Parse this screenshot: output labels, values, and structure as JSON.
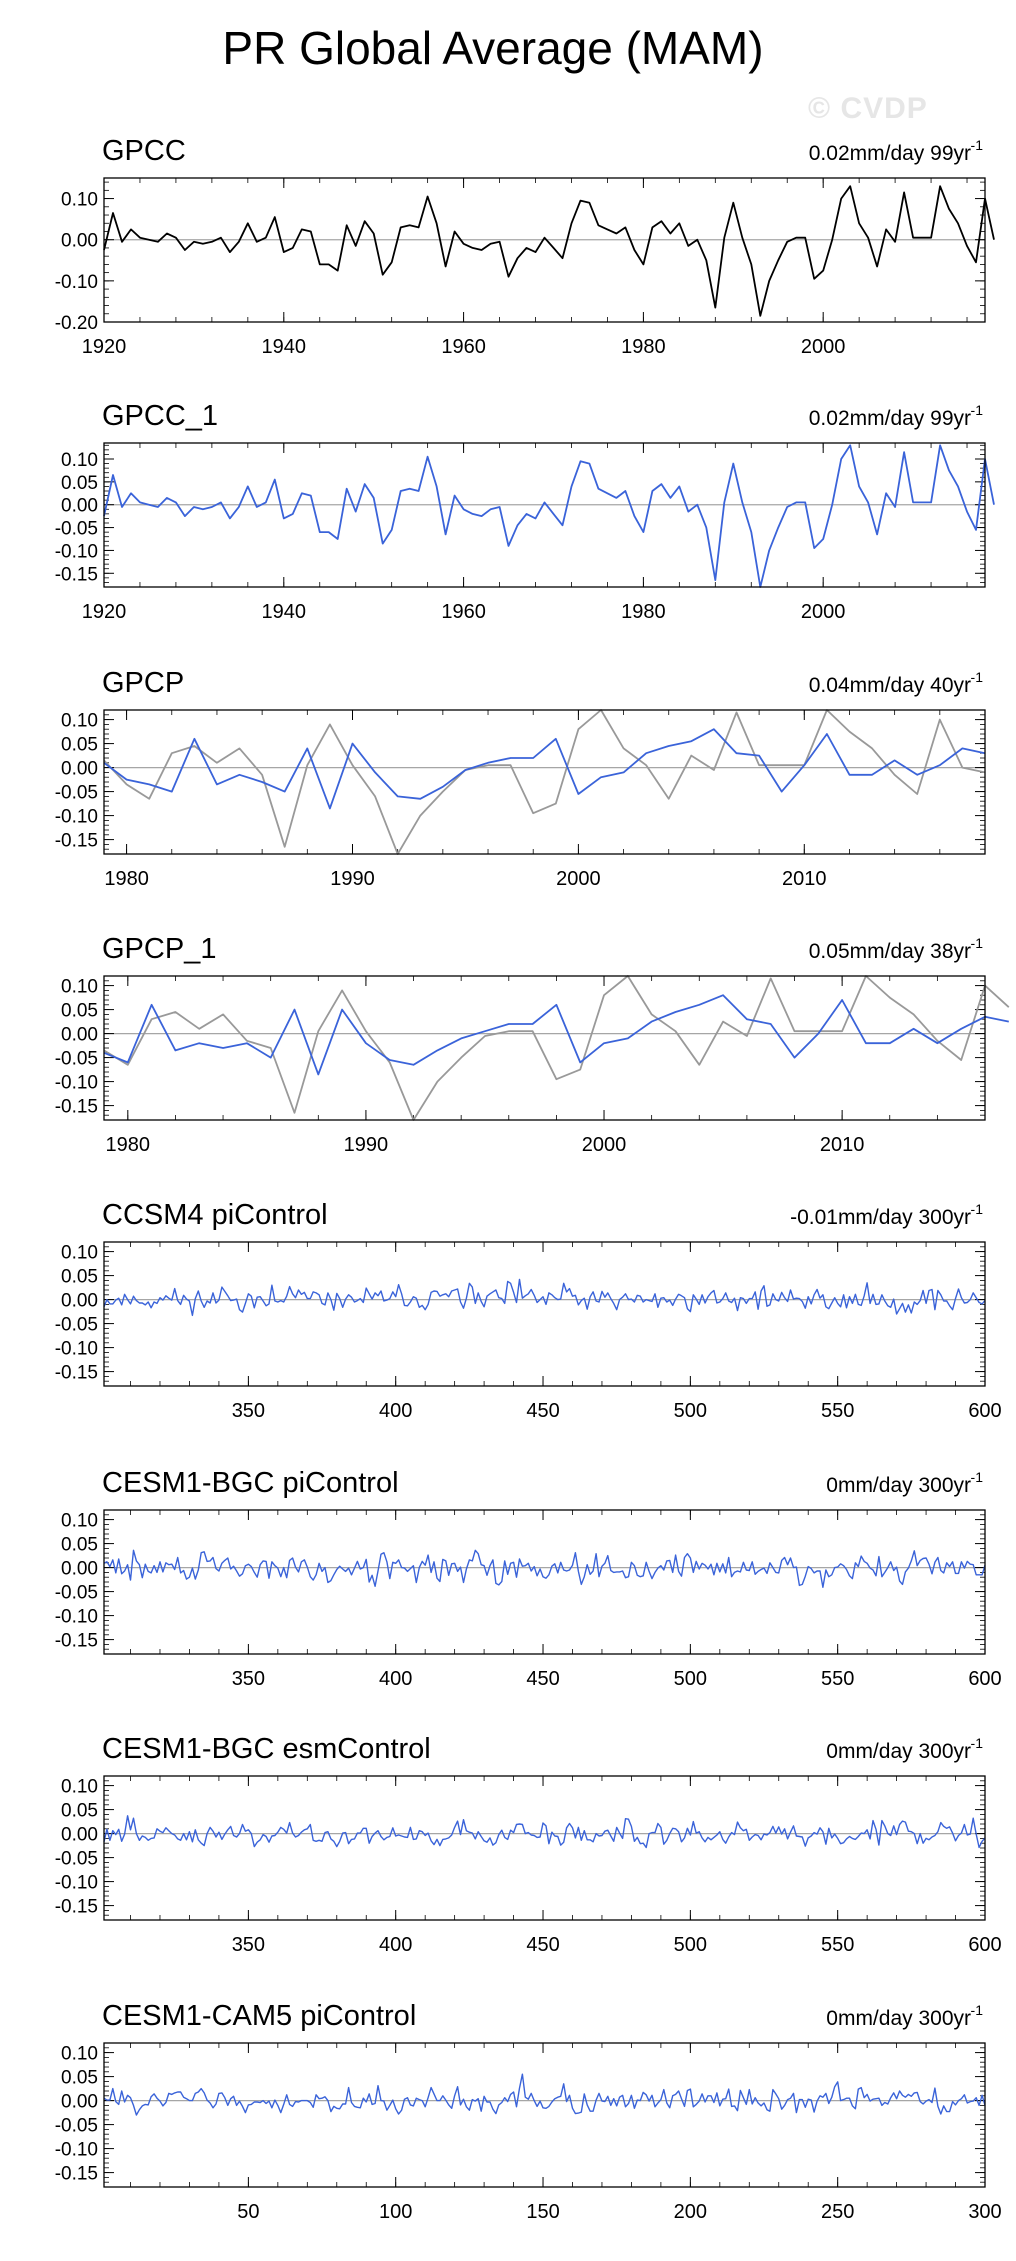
{
  "title": "PR Global Average (MAM)",
  "watermark": "© CVDP",
  "colors": {
    "obs": "#000000",
    "model": "#3a63d9",
    "gray": "#999999",
    "zero": "#a6a6a6",
    "axis": "#000000"
  },
  "chart_data": [
    {
      "type": "line",
      "title": "GPCC",
      "annotation": "0.02mm/day 99yr",
      "annotation_sup": "-1",
      "xlim": [
        1920,
        2018
      ],
      "ylim": [
        -0.2,
        0.15
      ],
      "x_ticks": [
        1920,
        1940,
        1960,
        1980,
        2000
      ],
      "y_ticks": [
        "0.10",
        "0.00",
        "-0.10",
        "-0.20"
      ],
      "y_tick_values": [
        0.1,
        0,
        -0.1,
        -0.2
      ],
      "series": [
        {
          "name": "GPCC",
          "color": "#000000",
          "x_start": 1920,
          "values": [
            -0.025,
            0.065,
            -0.005,
            0.025,
            0.005,
            0.0,
            -0.005,
            0.015,
            0.005,
            -0.025,
            -0.005,
            -0.01,
            -0.005,
            0.005,
            -0.03,
            -0.005,
            0.04,
            -0.005,
            0.005,
            0.055,
            -0.03,
            -0.02,
            0.025,
            0.02,
            -0.06,
            -0.06,
            -0.075,
            0.035,
            -0.015,
            0.045,
            0.015,
            -0.085,
            -0.055,
            0.03,
            0.035,
            0.03,
            0.105,
            0.04,
            -0.065,
            0.02,
            -0.01,
            -0.02,
            -0.025,
            -0.01,
            -0.005,
            -0.09,
            -0.045,
            -0.02,
            -0.03,
            0.005,
            -0.02,
            -0.045,
            0.04,
            0.095,
            0.09,
            0.035,
            0.025,
            0.015,
            0.03,
            -0.025,
            -0.06,
            0.03,
            0.045,
            0.015,
            0.04,
            -0.015,
            0.0,
            -0.05,
            -0.165,
            0.005,
            0.09,
            0.005,
            -0.06,
            -0.185,
            -0.1,
            -0.05,
            -0.005,
            0.005,
            0.005,
            -0.095,
            -0.075,
            0.0,
            0.1,
            0.13,
            0.04,
            0.005,
            -0.065,
            0.025,
            -0.005,
            0.115,
            0.005,
            0.005,
            0.005,
            0.13,
            0.075,
            0.04,
            -0.015,
            -0.055,
            0.1,
            0.0
          ]
        }
      ]
    },
    {
      "type": "line",
      "title": "GPCC_1",
      "annotation": "0.02mm/day 99yr",
      "annotation_sup": "-1",
      "xlim": [
        1920,
        2018
      ],
      "ylim": [
        -0.18,
        0.135
      ],
      "x_ticks": [
        1920,
        1940,
        1960,
        1980,
        2000
      ],
      "y_ticks": [
        "0.10",
        "0.05",
        "0.00",
        "-0.05",
        "-0.10",
        "-0.15"
      ],
      "y_tick_values": [
        0.1,
        0.05,
        0,
        -0.05,
        -0.1,
        -0.15
      ],
      "series": [
        {
          "name": "GPCC_1",
          "color": "#3a63d9",
          "x_start": 1920,
          "values": [
            -0.025,
            0.065,
            -0.005,
            0.025,
            0.005,
            0.0,
            -0.005,
            0.015,
            0.005,
            -0.025,
            -0.005,
            -0.01,
            -0.005,
            0.005,
            -0.03,
            -0.005,
            0.04,
            -0.005,
            0.005,
            0.055,
            -0.03,
            -0.02,
            0.025,
            0.02,
            -0.06,
            -0.06,
            -0.075,
            0.035,
            -0.015,
            0.045,
            0.015,
            -0.085,
            -0.055,
            0.03,
            0.035,
            0.03,
            0.105,
            0.04,
            -0.065,
            0.02,
            -0.01,
            -0.02,
            -0.025,
            -0.01,
            -0.005,
            -0.09,
            -0.045,
            -0.02,
            -0.03,
            0.005,
            -0.02,
            -0.045,
            0.04,
            0.095,
            0.09,
            0.035,
            0.025,
            0.015,
            0.03,
            -0.025,
            -0.06,
            0.03,
            0.045,
            0.015,
            0.04,
            -0.015,
            0.0,
            -0.05,
            -0.165,
            0.005,
            0.09,
            0.005,
            -0.06,
            -0.18,
            -0.1,
            -0.05,
            -0.005,
            0.005,
            0.005,
            -0.095,
            -0.075,
            0.0,
            0.1,
            0.13,
            0.04,
            0.005,
            -0.065,
            0.025,
            -0.005,
            0.115,
            0.005,
            0.005,
            0.005,
            0.13,
            0.075,
            0.04,
            -0.015,
            -0.055,
            0.1,
            0.0
          ]
        }
      ]
    },
    {
      "type": "line",
      "title": "GPCP",
      "annotation": "0.04mm/day 40yr",
      "annotation_sup": "-1",
      "xlim": [
        1979,
        2018
      ],
      "ylim": [
        -0.18,
        0.12
      ],
      "x_ticks": [
        1980,
        1990,
        2000,
        2010
      ],
      "y_ticks": [
        "0.10",
        "0.05",
        "0.00",
        "-0.05",
        "-0.10",
        "-0.15"
      ],
      "y_tick_values": [
        0.1,
        0.05,
        0,
        -0.05,
        -0.1,
        -0.15
      ],
      "series": [
        {
          "name": "GPCC",
          "color": "#999999",
          "x_start": 1979,
          "values": [
            0.015,
            -0.035,
            -0.065,
            0.03,
            0.045,
            0.01,
            0.04,
            -0.015,
            -0.165,
            0.005,
            0.09,
            0.005,
            -0.06,
            -0.18,
            -0.1,
            -0.05,
            -0.005,
            0.005,
            0.005,
            -0.095,
            -0.075,
            0.08,
            0.13,
            0.04,
            0.005,
            -0.065,
            0.025,
            -0.005,
            0.115,
            0.005,
            0.005,
            0.005,
            0.13,
            0.075,
            0.04,
            -0.015,
            -0.055,
            0.1,
            0.0,
            -0.01
          ]
        },
        {
          "name": "GPCP",
          "color": "#3a63d9",
          "x_start": 1979,
          "values": [
            0.01,
            -0.025,
            -0.035,
            -0.05,
            0.06,
            -0.035,
            -0.015,
            -0.03,
            -0.05,
            0.04,
            -0.085,
            0.05,
            -0.01,
            -0.06,
            -0.065,
            -0.04,
            -0.005,
            0.01,
            0.02,
            0.02,
            0.06,
            -0.055,
            -0.02,
            -0.01,
            0.03,
            0.045,
            0.055,
            0.08,
            0.03,
            0.025,
            -0.05,
            0.005,
            0.07,
            -0.015,
            -0.015,
            0.015,
            -0.015,
            0.005,
            0.04,
            0.03
          ]
        }
      ]
    },
    {
      "type": "line",
      "title": "GPCP_1",
      "annotation": "0.05mm/day 38yr",
      "annotation_sup": "-1",
      "xlim": [
        1979,
        2016
      ],
      "ylim": [
        -0.18,
        0.12
      ],
      "x_ticks": [
        1980,
        1990,
        2000,
        2010
      ],
      "y_ticks": [
        "0.10",
        "0.05",
        "0.00",
        "-0.05",
        "-0.10",
        "-0.15"
      ],
      "y_tick_values": [
        0.1,
        0.05,
        0,
        -0.05,
        -0.1,
        -0.15
      ],
      "series": [
        {
          "name": "GPCC",
          "color": "#999999",
          "x_start": 1979,
          "values": [
            -0.035,
            -0.065,
            0.03,
            0.045,
            0.01,
            0.04,
            -0.015,
            -0.03,
            -0.165,
            0.005,
            0.09,
            0.005,
            -0.06,
            -0.18,
            -0.1,
            -0.05,
            -0.005,
            0.005,
            0.005,
            -0.095,
            -0.075,
            0.08,
            0.13,
            0.04,
            0.005,
            -0.065,
            0.025,
            -0.005,
            0.115,
            0.005,
            0.005,
            0.005,
            0.13,
            0.075,
            0.04,
            -0.015,
            -0.055,
            0.1,
            0.055
          ]
        },
        {
          "name": "GPCP",
          "color": "#3a63d9",
          "x_start": 1979,
          "values": [
            -0.04,
            -0.06,
            0.06,
            -0.035,
            -0.02,
            -0.03,
            -0.02,
            -0.05,
            0.05,
            -0.085,
            0.05,
            -0.02,
            -0.055,
            -0.065,
            -0.035,
            -0.01,
            0.005,
            0.02,
            0.02,
            0.06,
            -0.06,
            -0.02,
            -0.01,
            0.025,
            0.045,
            0.06,
            0.08,
            0.03,
            0.02,
            -0.05,
            0.0,
            0.07,
            -0.02,
            -0.02,
            0.01,
            -0.02,
            0.01,
            0.035,
            0.025
          ]
        }
      ]
    },
    {
      "type": "line",
      "title": "CCSM4 piControl",
      "annotation": "-0.01mm/day 300yr",
      "annotation_sup": "-1",
      "xlim": [
        301,
        600
      ],
      "ylim": [
        -0.18,
        0.12
      ],
      "x_ticks": [
        350,
        400,
        450,
        500,
        550,
        600
      ],
      "y_ticks": [
        "0.10",
        "0.05",
        "0.00",
        "-0.05",
        "-0.10",
        "-0.15"
      ],
      "y_tick_values": [
        0.1,
        0.05,
        0,
        -0.05,
        -0.1,
        -0.15
      ],
      "series": [
        {
          "name": "CCSM4 piControl",
          "color": "#3a63d9",
          "x_start": 301,
          "seed": 11,
          "amplitude": 0.035,
          "n": 300,
          "values": []
        }
      ]
    },
    {
      "type": "line",
      "title": "CESM1-BGC piControl",
      "annotation": "0mm/day 300yr",
      "annotation_sup": "-1",
      "xlim": [
        301,
        600
      ],
      "ylim": [
        -0.18,
        0.12
      ],
      "x_ticks": [
        350,
        400,
        450,
        500,
        550,
        600
      ],
      "y_ticks": [
        "0.10",
        "0.05",
        "0.00",
        "-0.05",
        "-0.10",
        "-0.15"
      ],
      "y_tick_values": [
        0.1,
        0.05,
        0,
        -0.05,
        -0.1,
        -0.15
      ],
      "series": [
        {
          "name": "CESM1-BGC piControl",
          "color": "#3a63d9",
          "x_start": 301,
          "seed": 29,
          "amplitude": 0.04,
          "n": 300,
          "values": []
        }
      ]
    },
    {
      "type": "line",
      "title": "CESM1-BGC esmControl",
      "annotation": "0mm/day 300yr",
      "annotation_sup": "-1",
      "xlim": [
        301,
        600
      ],
      "ylim": [
        -0.18,
        0.12
      ],
      "x_ticks": [
        350,
        400,
        450,
        500,
        550,
        600
      ],
      "y_ticks": [
        "0.10",
        "0.05",
        "0.00",
        "-0.05",
        "-0.10",
        "-0.15"
      ],
      "y_tick_values": [
        0.1,
        0.05,
        0,
        -0.05,
        -0.1,
        -0.15
      ],
      "series": [
        {
          "name": "CESM1-BGC esmControl",
          "color": "#3a63d9",
          "x_start": 301,
          "seed": 47,
          "amplitude": 0.035,
          "n": 300,
          "values": []
        }
      ]
    },
    {
      "type": "line",
      "title": "CESM1-CAM5 piControl",
      "annotation": "0mm/day 300yr",
      "annotation_sup": "-1",
      "xlim": [
        1,
        300
      ],
      "ylim": [
        -0.18,
        0.12
      ],
      "x_ticks": [
        50,
        100,
        150,
        200,
        250,
        300
      ],
      "y_ticks": [
        "0.10",
        "0.05",
        "0.00",
        "-0.05",
        "-0.10",
        "-0.15"
      ],
      "y_tick_values": [
        0.1,
        0.05,
        0,
        -0.05,
        -0.1,
        -0.15
      ],
      "series": [
        {
          "name": "CESM1-CAM5 piControl",
          "color": "#3a63d9",
          "x_start": 1,
          "seed": 83,
          "amplitude": 0.035,
          "n": 300,
          "values": []
        }
      ]
    }
  ]
}
